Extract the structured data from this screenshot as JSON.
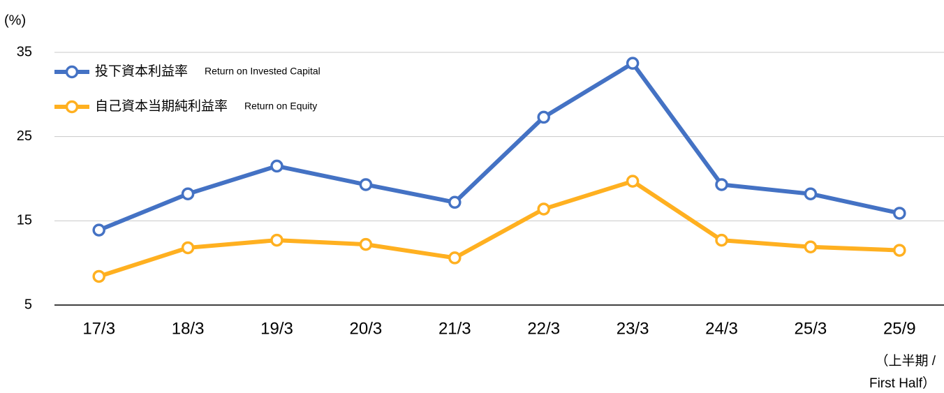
{
  "chart_data": {
    "type": "line",
    "y_axis_label": "(%)",
    "categories": [
      "17/3",
      "18/3",
      "19/3",
      "20/3",
      "21/3",
      "22/3",
      "23/3",
      "24/3",
      "25/3",
      "25/9"
    ],
    "category_note": [
      "（上半期 /",
      "First Half）"
    ],
    "series": [
      {
        "name": "投下資本利益率",
        "name_en": "Return on Invested Capital",
        "color": "#4472c4",
        "values": [
          13.9,
          18.2,
          21.5,
          19.3,
          17.2,
          27.3,
          33.7,
          19.3,
          18.2,
          15.9
        ]
      },
      {
        "name": "自己資本当期純利益率",
        "name_en": "Return on Equity",
        "color": "#ffb020",
        "values": [
          8.4,
          11.8,
          12.7,
          12.2,
          10.6,
          16.4,
          19.7,
          12.7,
          11.9,
          11.5
        ]
      }
    ],
    "ylim": [
      5,
      35
    ],
    "yticks": [
      5,
      15,
      25,
      35
    ],
    "grid": true,
    "legend": "upper left"
  }
}
